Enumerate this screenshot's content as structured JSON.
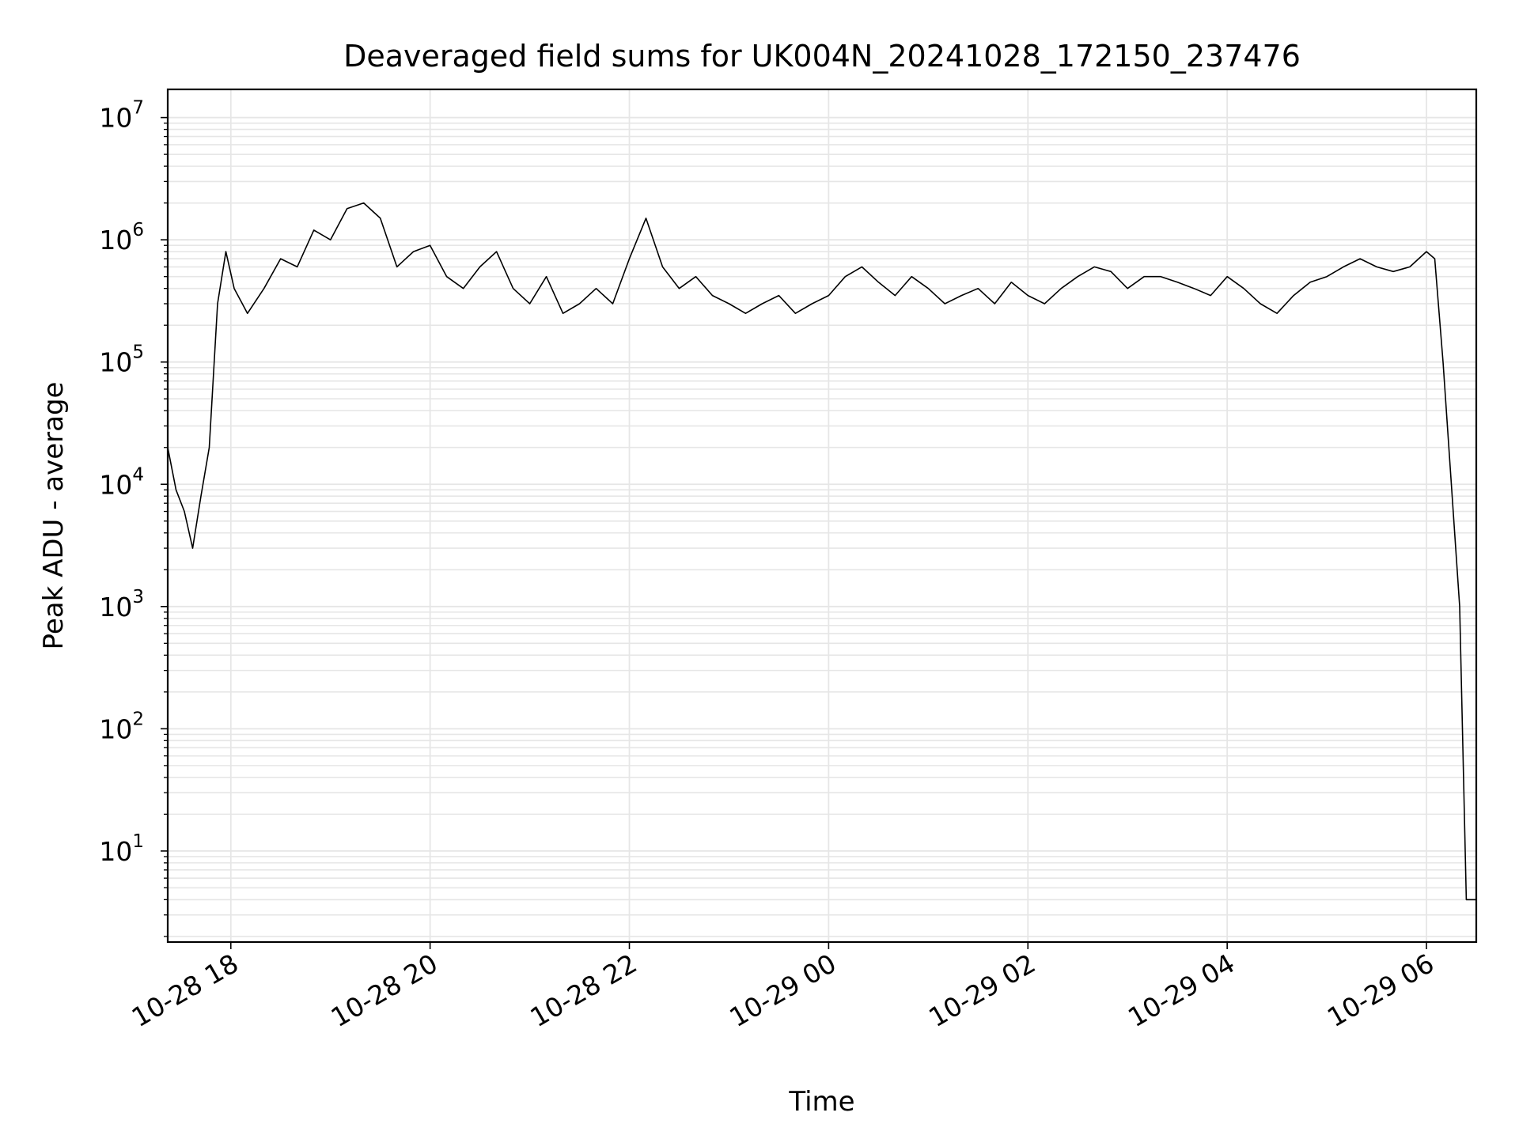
{
  "chart_data": {
    "type": "line",
    "title": "Deaveraged field sums for UK004N_20241028_172150_237476",
    "xlabel": "Time",
    "ylabel": "Peak ADU - average",
    "yscale": "log",
    "ylim": [
      1.8,
      17000000
    ],
    "xlim": [
      "2024-10-28T17:22",
      "2024-10-29T06:30"
    ],
    "grid": true,
    "legend": "none",
    "line_color": "#000000",
    "grid_color": "#e6e6e6",
    "x_ticks": [
      {
        "value": "2024-10-28T18:00",
        "label": "10-28 18"
      },
      {
        "value": "2024-10-28T20:00",
        "label": "10-28 20"
      },
      {
        "value": "2024-10-28T22:00",
        "label": "10-28 22"
      },
      {
        "value": "2024-10-29T00:00",
        "label": "10-29 00"
      },
      {
        "value": "2024-10-29T02:00",
        "label": "10-29 02"
      },
      {
        "value": "2024-10-29T04:00",
        "label": "10-29 04"
      },
      {
        "value": "2024-10-29T06:00",
        "label": "10-29 06"
      }
    ],
    "y_ticks": [
      {
        "value": 10,
        "base": "10",
        "exp": "1"
      },
      {
        "value": 100,
        "base": "10",
        "exp": "2"
      },
      {
        "value": 1000,
        "base": "10",
        "exp": "3"
      },
      {
        "value": 10000,
        "base": "10",
        "exp": "4"
      },
      {
        "value": 100000,
        "base": "10",
        "exp": "5"
      },
      {
        "value": 1000000,
        "base": "10",
        "exp": "6"
      },
      {
        "value": 10000000,
        "base": "10",
        "exp": "7"
      }
    ],
    "series": [
      {
        "x": [
          "2024-10-28T17:22",
          "2024-10-28T17:27",
          "2024-10-28T17:32",
          "2024-10-28T17:37",
          "2024-10-28T17:42",
          "2024-10-28T17:47",
          "2024-10-28T17:52",
          "2024-10-28T17:57",
          "2024-10-28T18:02",
          "2024-10-28T18:10",
          "2024-10-28T18:20",
          "2024-10-28T18:30",
          "2024-10-28T18:40",
          "2024-10-28T18:50",
          "2024-10-28T19:00",
          "2024-10-28T19:10",
          "2024-10-28T19:20",
          "2024-10-28T19:30",
          "2024-10-28T19:40",
          "2024-10-28T19:50",
          "2024-10-28T20:00",
          "2024-10-28T20:10",
          "2024-10-28T20:20",
          "2024-10-28T20:30",
          "2024-10-28T20:40",
          "2024-10-28T20:50",
          "2024-10-28T21:00",
          "2024-10-28T21:10",
          "2024-10-28T21:20",
          "2024-10-28T21:30",
          "2024-10-28T21:40",
          "2024-10-28T21:50",
          "2024-10-28T22:00",
          "2024-10-28T22:10",
          "2024-10-28T22:20",
          "2024-10-28T22:30",
          "2024-10-28T22:40",
          "2024-10-28T22:50",
          "2024-10-28T23:00",
          "2024-10-28T23:10",
          "2024-10-28T23:20",
          "2024-10-28T23:30",
          "2024-10-28T23:40",
          "2024-10-28T23:50",
          "2024-10-29T00:00",
          "2024-10-29T00:10",
          "2024-10-29T00:20",
          "2024-10-29T00:30",
          "2024-10-29T00:40",
          "2024-10-29T00:50",
          "2024-10-29T01:00",
          "2024-10-29T01:10",
          "2024-10-29T01:20",
          "2024-10-29T01:30",
          "2024-10-29T01:40",
          "2024-10-29T01:50",
          "2024-10-29T02:00",
          "2024-10-29T02:10",
          "2024-10-29T02:20",
          "2024-10-29T02:30",
          "2024-10-29T02:40",
          "2024-10-29T02:50",
          "2024-10-29T03:00",
          "2024-10-29T03:10",
          "2024-10-29T03:20",
          "2024-10-29T03:30",
          "2024-10-29T03:40",
          "2024-10-29T03:50",
          "2024-10-29T04:00",
          "2024-10-29T04:10",
          "2024-10-29T04:20",
          "2024-10-29T04:30",
          "2024-10-29T04:40",
          "2024-10-29T04:50",
          "2024-10-29T05:00",
          "2024-10-29T05:10",
          "2024-10-29T05:20",
          "2024-10-29T05:30",
          "2024-10-29T05:40",
          "2024-10-29T05:50",
          "2024-10-29T06:00",
          "2024-10-29T06:05",
          "2024-10-29T06:10",
          "2024-10-29T06:15",
          "2024-10-29T06:20",
          "2024-10-29T06:24",
          "2024-10-29T06:26",
          "2024-10-29T06:30"
        ],
        "y": [
          20000,
          9000,
          6000,
          3000,
          8000,
          20000,
          300000,
          800000,
          400000,
          250000,
          400000,
          700000,
          600000,
          1200000,
          1000000,
          1800000,
          2000000,
          1500000,
          600000,
          800000,
          900000,
          500000,
          400000,
          600000,
          800000,
          400000,
          300000,
          500000,
          250000,
          300000,
          400000,
          300000,
          700000,
          1500000,
          600000,
          400000,
          500000,
          350000,
          300000,
          250000,
          300000,
          350000,
          250000,
          300000,
          350000,
          500000,
          600000,
          450000,
          350000,
          500000,
          400000,
          300000,
          350000,
          400000,
          300000,
          450000,
          350000,
          300000,
          400000,
          500000,
          600000,
          550000,
          400000,
          500000,
          500000,
          450000,
          400000,
          350000,
          500000,
          400000,
          300000,
          250000,
          350000,
          450000,
          500000,
          600000,
          700000,
          600000,
          550000,
          600000,
          800000,
          700000,
          100000,
          10000,
          1000,
          4,
          4,
          4
        ]
      }
    ],
    "annotations": []
  }
}
